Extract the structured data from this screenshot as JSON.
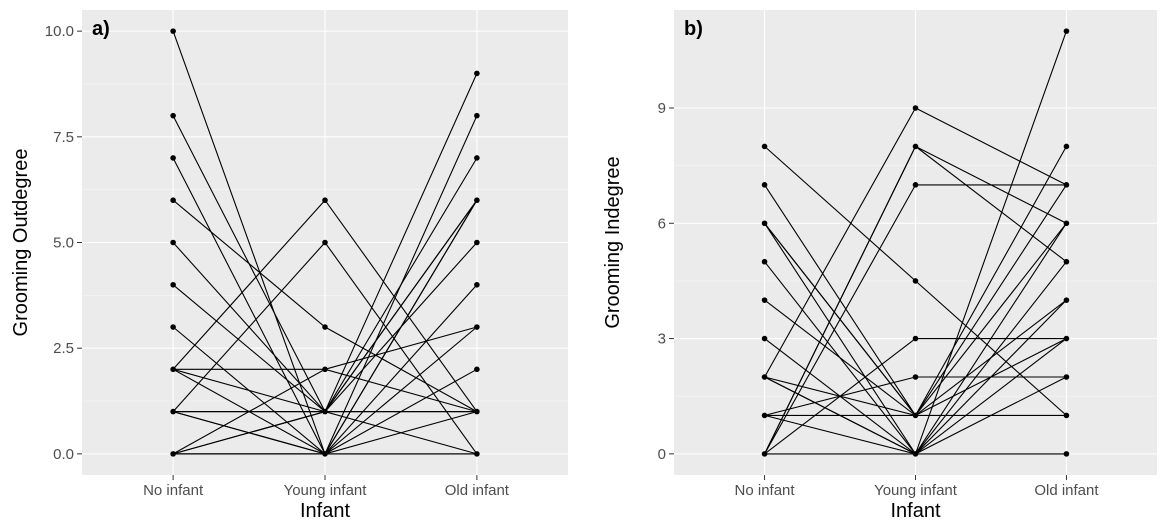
{
  "chart_data": [
    {
      "type": "line",
      "panel_label": "a)",
      "xlabel": "Infant",
      "ylabel": "Grooming Outdegree",
      "categories": [
        "No infant",
        "Young infant",
        "Old infant"
      ],
      "ylim": [
        -0.5,
        10.5
      ],
      "yticks": [
        "0.0",
        "2.5",
        "5.0",
        "7.5",
        "10.0"
      ],
      "ytick_values": [
        0,
        2.5,
        5,
        7.5,
        10
      ],
      "grid": true,
      "series": [
        {
          "values": [
            10,
            0,
            1
          ]
        },
        {
          "values": [
            8,
            1,
            0
          ]
        },
        {
          "values": [
            7,
            0,
            0
          ]
        },
        {
          "values": [
            6,
            3,
            1
          ]
        },
        {
          "values": [
            5,
            1,
            1
          ]
        },
        {
          "values": [
            4,
            1,
            1
          ]
        },
        {
          "values": [
            3,
            0,
            0
          ]
        },
        {
          "values": [
            2,
            6,
            1
          ]
        },
        {
          "values": [
            2,
            2,
            1
          ]
        },
        {
          "values": [
            2,
            0,
            6
          ]
        },
        {
          "values": [
            1,
            5,
            0
          ]
        },
        {
          "values": [
            1,
            1,
            6
          ]
        },
        {
          "values": [
            1,
            1,
            9
          ]
        },
        {
          "values": [
            1,
            0,
            3
          ]
        },
        {
          "values": [
            0,
            1,
            7
          ]
        },
        {
          "values": [
            0,
            0,
            8
          ]
        },
        {
          "values": [
            0,
            0,
            6
          ]
        },
        {
          "values": [
            0,
            1,
            5
          ]
        },
        {
          "values": [
            1,
            0,
            4
          ]
        },
        {
          "values": [
            0,
            0,
            2
          ]
        },
        {
          "values": [
            1,
            1,
            1
          ]
        },
        {
          "values": [
            2,
            1,
            6
          ]
        },
        {
          "values": [
            0,
            2,
            3
          ]
        }
      ]
    },
    {
      "type": "line",
      "panel_label": "b)",
      "xlabel": "Infant",
      "ylabel": "Grooming Indegree",
      "categories": [
        "No infant",
        "Young infant",
        "Old infant"
      ],
      "ylim": [
        -0.55,
        11.55
      ],
      "yticks": [
        "0",
        "3",
        "6",
        "9"
      ],
      "ytick_values": [
        0,
        3,
        6,
        9
      ],
      "grid": true,
      "series": [
        {
          "values": [
            8,
            4.5,
            1
          ]
        },
        {
          "values": [
            7,
            1,
            3
          ]
        },
        {
          "values": [
            6,
            1,
            4
          ]
        },
        {
          "values": [
            6,
            0,
            0
          ]
        },
        {
          "values": [
            5,
            0,
            2
          ]
        },
        {
          "values": [
            4,
            1,
            6
          ]
        },
        {
          "values": [
            3,
            0,
            5
          ]
        },
        {
          "values": [
            2,
            9,
            7
          ]
        },
        {
          "values": [
            2,
            1,
            8
          ]
        },
        {
          "values": [
            2,
            0,
            11
          ]
        },
        {
          "values": [
            1,
            2,
            2
          ]
        },
        {
          "values": [
            1,
            1,
            1
          ]
        },
        {
          "values": [
            1,
            0,
            3
          ]
        },
        {
          "values": [
            0,
            8,
            6
          ]
        },
        {
          "values": [
            0,
            7,
            7
          ]
        },
        {
          "values": [
            0,
            8,
            5
          ]
        },
        {
          "values": [
            0,
            3,
            3
          ]
        },
        {
          "values": [
            0,
            0,
            4
          ]
        },
        {
          "values": [
            6,
            1,
            7
          ]
        },
        {
          "values": [
            2,
            0,
            6
          ]
        }
      ]
    }
  ]
}
